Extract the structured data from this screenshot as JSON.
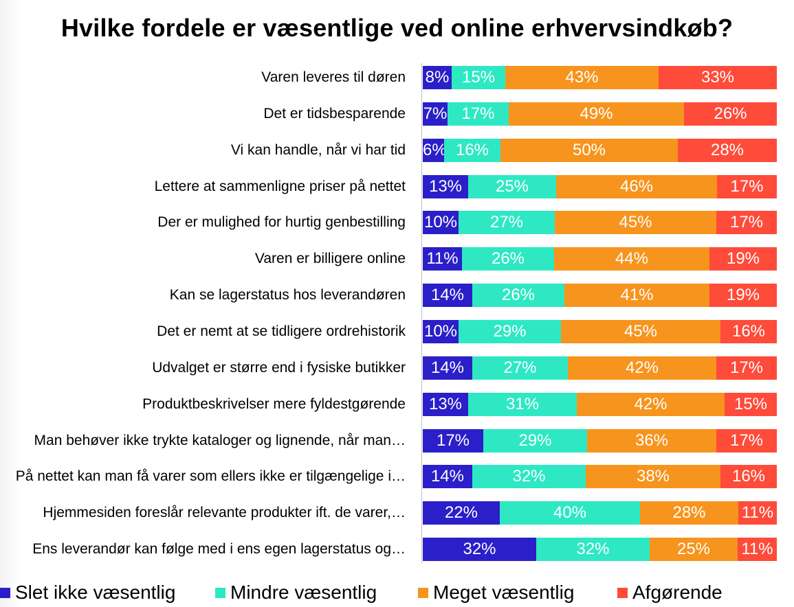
{
  "chart_data": {
    "type": "bar",
    "orientation": "horizontal",
    "stacked": "percent",
    "title": "Hvilke fordele er væsentlige ved online erhvervsindkøb?",
    "categories": [
      "Varen leveres til døren",
      "Det er tidsbesparende",
      "Vi kan handle, når vi har tid",
      "Lettere at sammenligne priser på nettet",
      "Der er mulighed for hurtig genbestilling",
      "Varen er billigere online",
      "Kan se lagerstatus hos leverandøren",
      "Det er nemt at se tidligere ordrehistorik",
      "Udvalget er større end i fysiske butikker",
      "Produktbeskrivelser mere fyldestgørende",
      "Man behøver ikke trykte kataloger og lignende, når man…",
      "På nettet kan man få varer som ellers ikke er tilgængelige i…",
      "Hjemmesiden foreslår relevante produkter ift. de varer,…",
      "Ens leverandør kan følge med i ens egen lagerstatus og…"
    ],
    "series": [
      {
        "name": "Slet ikke væsentlig",
        "color": "#2a1fc9",
        "values": [
          8,
          7,
          6,
          13,
          10,
          11,
          14,
          10,
          14,
          13,
          17,
          14,
          22,
          32
        ]
      },
      {
        "name": "Mindre væsentlig",
        "color": "#2ee8c4",
        "values": [
          15,
          17,
          16,
          25,
          27,
          26,
          26,
          29,
          27,
          31,
          29,
          32,
          40,
          32
        ]
      },
      {
        "name": "Meget væsentlig",
        "color": "#f7941d",
        "values": [
          43,
          49,
          50,
          46,
          45,
          44,
          41,
          45,
          42,
          42,
          36,
          38,
          28,
          25
        ]
      },
      {
        "name": "Afgørende",
        "color": "#ff4b3a",
        "values": [
          33,
          26,
          28,
          17,
          17,
          19,
          19,
          16,
          17,
          15,
          17,
          16,
          11,
          11
        ]
      }
    ],
    "value_suffix": "%",
    "legend_position": "bottom",
    "grid": false
  }
}
